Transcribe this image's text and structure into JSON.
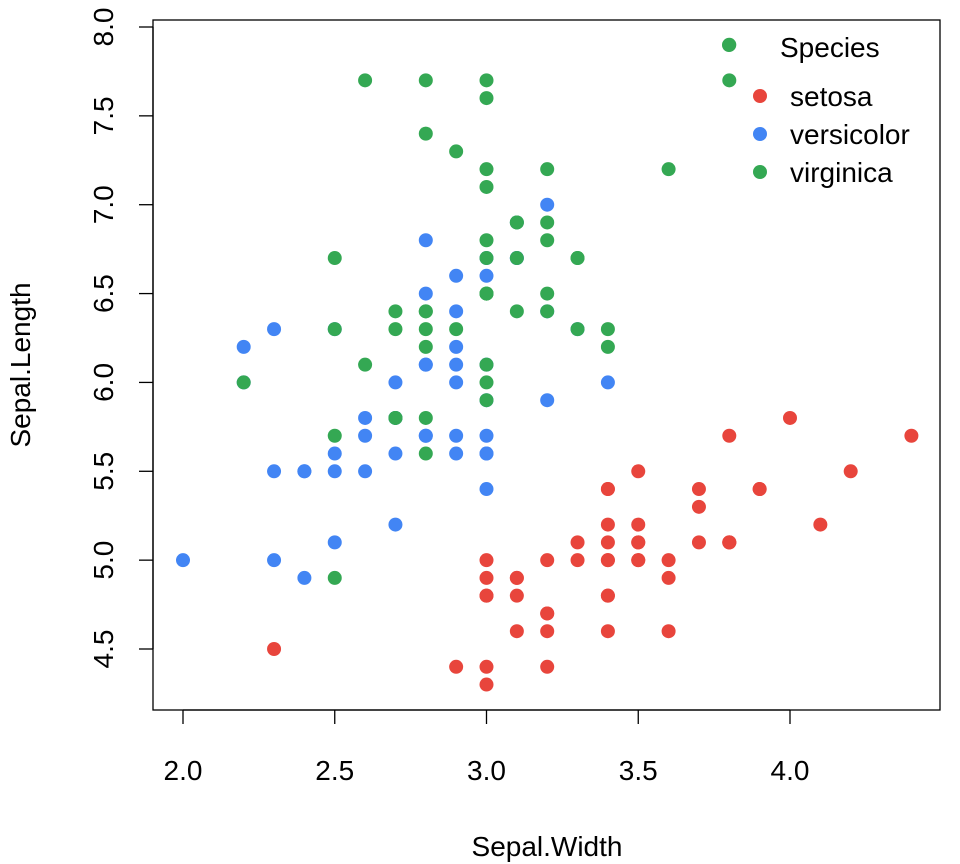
{
  "chart_data": {
    "type": "scatter",
    "xlabel": "Sepal.Width",
    "ylabel": "Sepal.Length",
    "xlim": [
      1.95,
      4.45
    ],
    "ylim": [
      4.2,
      8.1
    ],
    "xticks": [
      2.0,
      2.5,
      3.0,
      3.5,
      4.0
    ],
    "xtick_labels": [
      "2.0",
      "2.5",
      "3.0",
      "3.5",
      "4.0"
    ],
    "yticks": [
      4.5,
      5.0,
      5.5,
      6.0,
      6.5,
      7.0,
      7.5,
      8.0
    ],
    "ytick_labels": [
      "4.5",
      "5.0",
      "5.5",
      "6.0",
      "6.5",
      "7.0",
      "7.5",
      "8.0"
    ],
    "legend": {
      "title": "Species",
      "placement": "top-right",
      "entries": [
        "setosa",
        "versicolor",
        "virginica"
      ]
    },
    "series": [
      {
        "name": "setosa",
        "color": "#E8453C",
        "x": [
          3.5,
          3.0,
          3.2,
          3.1,
          3.6,
          3.9,
          3.4,
          3.4,
          2.9,
          3.1,
          3.7,
          3.4,
          3.0,
          3.0,
          4.0,
          4.4,
          3.9,
          3.5,
          3.8,
          3.8,
          3.4,
          3.7,
          3.6,
          3.3,
          3.4,
          3.0,
          3.4,
          3.5,
          3.4,
          3.2,
          3.1,
          3.4,
          4.1,
          4.2,
          3.1,
          3.2,
          3.5,
          3.6,
          3.0,
          3.4,
          3.5,
          2.3,
          3.2,
          3.5,
          3.8,
          3.0,
          3.8,
          3.2,
          3.7,
          3.3
        ],
        "y": [
          5.1,
          4.9,
          4.7,
          4.6,
          5.0,
          5.4,
          4.6,
          5.0,
          4.4,
          4.9,
          5.4,
          4.8,
          4.8,
          4.3,
          5.8,
          5.7,
          5.4,
          5.1,
          5.7,
          5.1,
          5.4,
          5.1,
          4.6,
          5.1,
          4.8,
          5.0,
          5.0,
          5.2,
          5.2,
          4.7,
          4.8,
          5.4,
          5.2,
          5.5,
          4.9,
          5.0,
          5.5,
          4.9,
          4.4,
          5.1,
          5.0,
          4.5,
          4.4,
          5.0,
          5.1,
          4.8,
          5.1,
          4.6,
          5.3,
          5.0
        ]
      },
      {
        "name": "versicolor",
        "color": "#4285F4",
        "x": [
          3.2,
          3.2,
          3.1,
          2.3,
          2.8,
          2.8,
          3.3,
          2.4,
          2.9,
          2.7,
          2.0,
          3.0,
          2.2,
          2.9,
          2.9,
          3.1,
          3.0,
          2.7,
          2.2,
          2.5,
          3.2,
          2.8,
          2.5,
          2.8,
          2.9,
          3.0,
          2.8,
          3.0,
          2.9,
          2.6,
          2.4,
          2.4,
          2.7,
          2.7,
          3.0,
          3.4,
          3.1,
          2.3,
          3.0,
          2.5,
          2.6,
          3.0,
          2.6,
          2.3,
          2.7,
          3.0,
          2.9,
          2.9,
          2.5,
          2.8
        ],
        "y": [
          7.0,
          6.4,
          6.9,
          5.5,
          6.5,
          5.7,
          6.3,
          4.9,
          6.6,
          5.2,
          5.0,
          5.9,
          6.0,
          6.1,
          5.6,
          6.7,
          5.6,
          5.8,
          6.2,
          5.6,
          5.9,
          6.1,
          6.3,
          6.1,
          6.4,
          6.6,
          6.8,
          6.7,
          6.0,
          5.7,
          5.5,
          5.5,
          5.8,
          6.0,
          5.4,
          6.0,
          6.7,
          6.3,
          5.6,
          5.5,
          5.5,
          6.1,
          5.8,
          5.0,
          5.6,
          5.7,
          5.7,
          6.2,
          5.1,
          5.7
        ]
      },
      {
        "name": "virginica",
        "color": "#34A853",
        "x": [
          3.3,
          2.7,
          3.0,
          2.9,
          3.0,
          3.0,
          2.5,
          2.9,
          2.5,
          3.6,
          3.2,
          2.7,
          3.0,
          2.5,
          2.8,
          3.2,
          3.0,
          3.8,
          2.6,
          2.2,
          3.2,
          2.8,
          2.8,
          2.7,
          3.3,
          3.2,
          2.8,
          3.0,
          2.8,
          3.0,
          2.8,
          3.8,
          2.8,
          2.8,
          2.6,
          3.0,
          3.4,
          3.1,
          3.0,
          3.1,
          3.1,
          3.1,
          2.7,
          3.2,
          3.3,
          3.0,
          2.5,
          3.0,
          3.4,
          3.0
        ],
        "y": [
          6.3,
          5.8,
          7.1,
          6.3,
          6.5,
          7.6,
          4.9,
          7.3,
          6.7,
          7.2,
          6.5,
          6.4,
          6.8,
          5.7,
          5.8,
          6.4,
          6.5,
          7.7,
          7.7,
          6.0,
          6.9,
          5.6,
          7.7,
          6.3,
          6.7,
          7.2,
          6.2,
          6.1,
          6.4,
          7.2,
          7.4,
          7.9,
          6.4,
          6.3,
          6.1,
          7.7,
          6.3,
          6.4,
          6.0,
          6.9,
          6.7,
          6.9,
          5.8,
          6.8,
          6.7,
          6.7,
          6.3,
          6.5,
          6.2,
          5.9
        ]
      }
    ]
  }
}
